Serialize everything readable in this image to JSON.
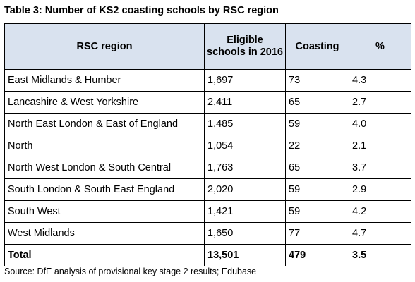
{
  "caption": "Table 3: Number of KS2 coasting schools by RSC region",
  "table": {
    "headers": [
      "RSC region",
      "Eligible schools in 2016",
      "Coasting",
      "%"
    ],
    "rows": [
      [
        "East Midlands & Humber",
        "1,697",
        "73",
        "4.3"
      ],
      [
        "Lancashire & West Yorkshire",
        "2,411",
        "65",
        "2.7"
      ],
      [
        "North East London & East of England",
        "1,485",
        "59",
        "4.0"
      ],
      [
        "North",
        "1,054",
        "22",
        "2.1"
      ],
      [
        "North West London & South Central",
        "1,763",
        "65",
        "3.7"
      ],
      [
        "South London & South East England",
        "2,020",
        "59",
        "2.9"
      ],
      [
        "South West",
        "1,421",
        "59",
        "4.2"
      ],
      [
        "West Midlands",
        "1,650",
        "77",
        "4.7"
      ]
    ],
    "total": [
      "Total",
      "13,501",
      "479",
      "3.5"
    ],
    "header_background": "#d9e2ef"
  },
  "source": "Source: DfE analysis of provisional key stage 2 results; Edubase"
}
